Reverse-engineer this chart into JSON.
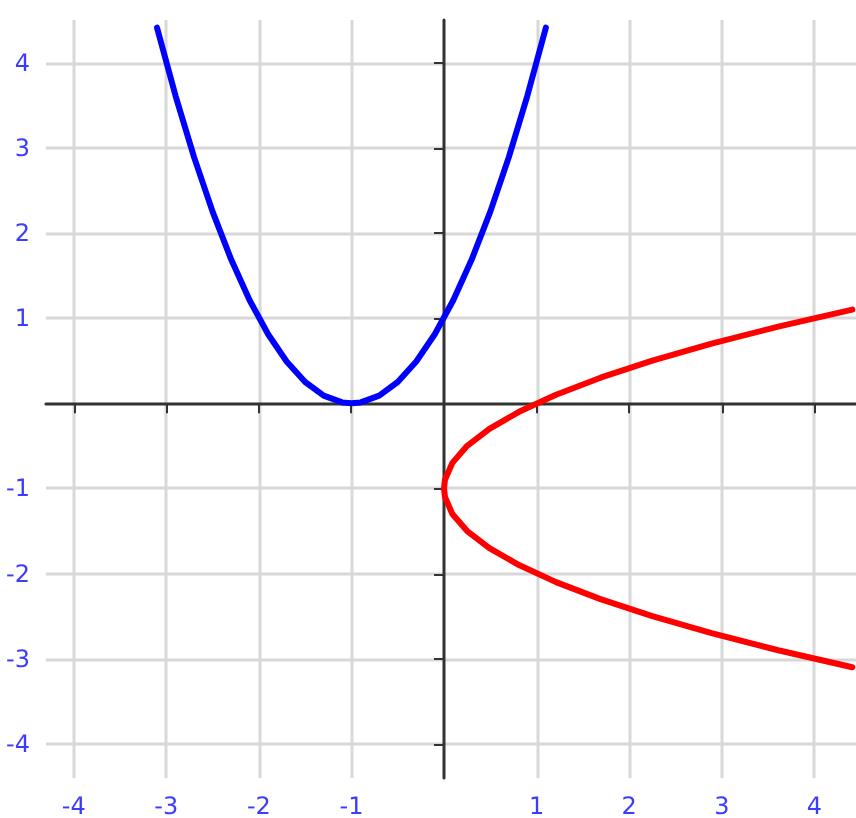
{
  "chart_data": {
    "type": "line",
    "xlim": [
      -4.3,
      4.45
    ],
    "ylim": [
      -4.4,
      4.5
    ],
    "xticks": [
      -4,
      -3,
      -2,
      -1,
      1,
      2,
      3,
      4
    ],
    "yticks": [
      -4,
      -3,
      -2,
      -1,
      1,
      2,
      3,
      4
    ],
    "grid": true,
    "marker": "none",
    "line_style": "solid",
    "series": [
      {
        "color": "#0000ff",
        "x": [
          -3.1,
          -2.9,
          -2.7,
          -2.5,
          -2.3,
          -2.1,
          -1.9,
          -1.7,
          -1.5,
          -1.3,
          -1.1,
          -1,
          -0.9,
          -0.7,
          -0.5,
          -0.3,
          -0.1,
          0.1,
          0.3,
          0.5,
          0.7,
          0.9,
          1.1
        ],
        "values": [
          4.41,
          3.61,
          2.89,
          2.25,
          1.69,
          1.21,
          0.81,
          0.49,
          0.25,
          0.09,
          0.01,
          0,
          0.01,
          0.09,
          0.25,
          0.49,
          0.81,
          1.21,
          1.69,
          2.25,
          2.89,
          3.61,
          4.41
        ]
      },
      {
        "color": "#ff0000",
        "x": [
          4.41,
          3.61,
          2.89,
          2.25,
          1.69,
          1.21,
          0.81,
          0.49,
          0.25,
          0.09,
          0.01,
          0,
          0.01,
          0.09,
          0.25,
          0.49,
          0.81,
          1.21,
          1.69,
          2.25,
          2.89,
          3.61,
          4.41
        ],
        "values": [
          1.1,
          0.9,
          0.7,
          0.5,
          0.3,
          0.1,
          -0.1,
          -0.3,
          -0.5,
          -0.7,
          -0.9,
          -1,
          -1.1,
          -1.3,
          -1.5,
          -1.7,
          -1.9,
          -2.1,
          -2.3,
          -2.5,
          -2.7,
          -2.9,
          -3.1
        ]
      }
    ]
  }
}
